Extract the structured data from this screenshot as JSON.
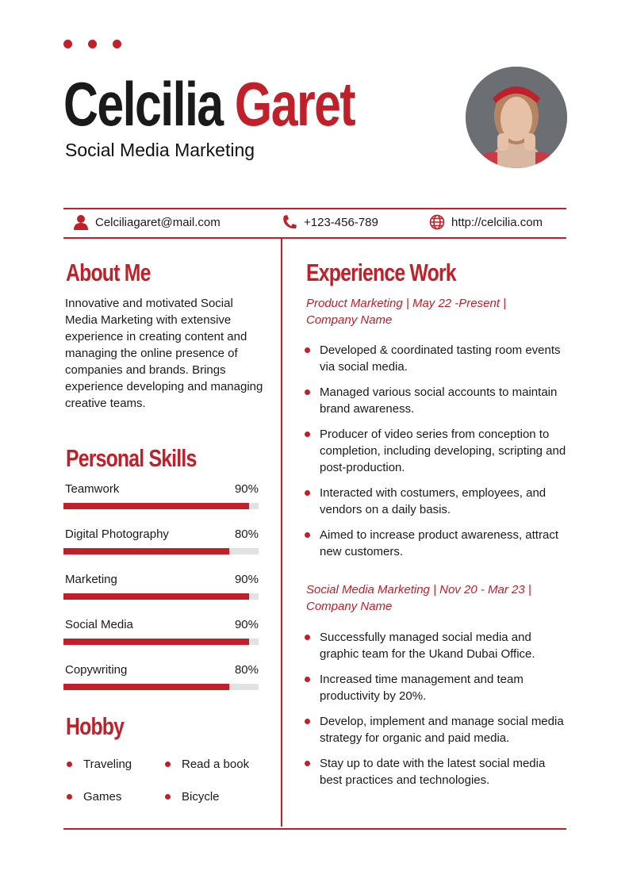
{
  "header": {
    "first_name": "Celcilia",
    "last_name": "Garet",
    "title": "Social Media Marketing"
  },
  "contact": {
    "email": "Celciliagaret@mail.com",
    "phone": "+123-456-789",
    "website": "http://celcilia.com"
  },
  "about": {
    "heading": "About Me",
    "text": "Innovative and motivated Social Media Marketing with extensive experience in creating content and managing the online presence of companies and brands. Brings experience developing and managing creative teams."
  },
  "skills": {
    "heading": "Personal Skills",
    "items": [
      {
        "name": "Teamwork",
        "label": "90%",
        "value": 90
      },
      {
        "name": "Digital Photography",
        "label": "80%",
        "value": 80
      },
      {
        "name": "Marketing",
        "label": "90%",
        "value": 90
      },
      {
        "name": "Social Media",
        "label": "90%",
        "value": 90
      },
      {
        "name": "Copywriting",
        "label": "80%",
        "value": 80
      }
    ]
  },
  "hobby": {
    "heading": "Hobby",
    "items": [
      "Traveling",
      "Read a book",
      "Games",
      "Bicycle"
    ]
  },
  "experience": {
    "heading": "Experience Work",
    "jobs": [
      {
        "title": "Product Marketing | May 22 -Present | Company Name",
        "bullets": [
          "Developed & coordinated tasting room events via social media.",
          "Managed various social accounts to maintain brand awareness.",
          "Producer of video series from conception to completion, including developing, scripting and post-production.",
          "Interacted with costumers, employees, and vendors on a daily basis.",
          "Aimed to increase product awareness, attract new customers."
        ]
      },
      {
        "title": "Social Media Marketing | Nov 20 - Mar 23 | Company Name",
        "bullets": [
          "Successfully managed social media and graphic team for the Ukand Dubai Office.",
          "Increased time management and team productivity by 20%.",
          "Develop, implement and manage social media strategy for organic and paid media.",
          "Stay up to date with the latest social media best practices and technologies."
        ]
      }
    ]
  },
  "colors": {
    "accent": "#c0202a",
    "track": "#e2e2e2"
  }
}
